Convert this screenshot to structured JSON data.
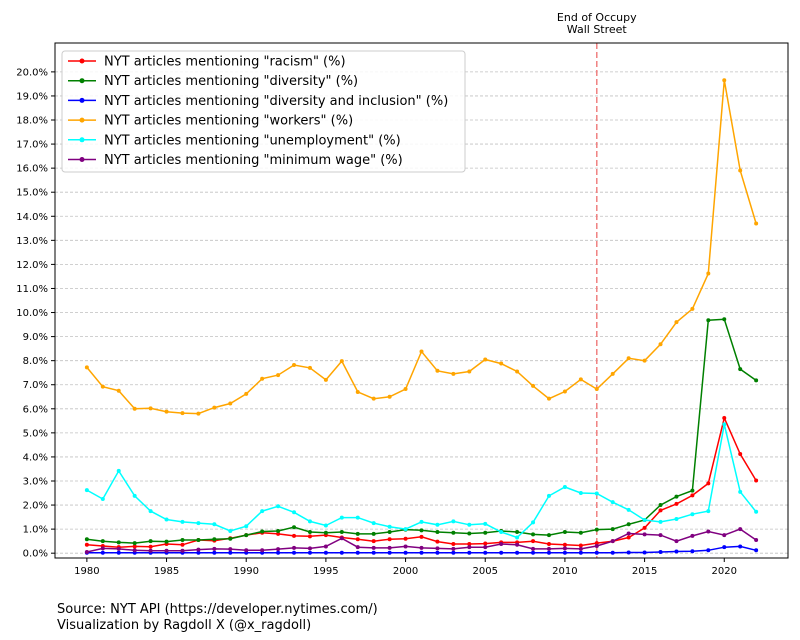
{
  "chart_data": {
    "type": "line",
    "title": "",
    "xlabel": "",
    "ylabel": "",
    "xlim": [
      1978,
      2024
    ],
    "ylim": [
      -0.2,
      21.2
    ],
    "x_ticks": [
      1980,
      1985,
      1990,
      1995,
      2000,
      2005,
      2010,
      2015,
      2020
    ],
    "y_ticks": [
      0,
      1,
      2,
      3,
      4,
      5,
      6,
      7,
      8,
      9,
      10,
      11,
      12,
      13,
      14,
      15,
      16,
      17,
      18,
      19,
      20
    ],
    "y_tick_suffix": "%",
    "grid": "horizontal dashed",
    "legend_position": "top-left",
    "x": [
      1980,
      1981,
      1982,
      1983,
      1984,
      1985,
      1986,
      1987,
      1988,
      1989,
      1990,
      1991,
      1992,
      1993,
      1994,
      1995,
      1996,
      1997,
      1998,
      1999,
      2000,
      2001,
      2002,
      2003,
      2004,
      2005,
      2006,
      2007,
      2008,
      2009,
      2010,
      2011,
      2012,
      2013,
      2014,
      2015,
      2016,
      2017,
      2018,
      2019,
      2020,
      2021,
      2022
    ],
    "series": [
      {
        "name": "NYT articles mentioning \"racism\" (%)",
        "color": "#ff0000",
        "values": [
          0.35,
          0.3,
          0.25,
          0.28,
          0.27,
          0.38,
          0.35,
          0.55,
          0.52,
          0.62,
          0.75,
          0.85,
          0.8,
          0.72,
          0.7,
          0.75,
          0.65,
          0.58,
          0.5,
          0.58,
          0.6,
          0.68,
          0.48,
          0.38,
          0.38,
          0.4,
          0.45,
          0.45,
          0.5,
          0.38,
          0.35,
          0.32,
          0.42,
          0.5,
          0.65,
          1.05,
          1.78,
          2.05,
          2.4,
          2.9,
          5.62,
          4.12,
          3.02
        ]
      },
      {
        "name": "NYT articles mentioning \"diversity\" (%)",
        "color": "#008000",
        "values": [
          0.58,
          0.5,
          0.45,
          0.42,
          0.5,
          0.48,
          0.55,
          0.55,
          0.58,
          0.6,
          0.75,
          0.9,
          0.92,
          1.08,
          0.88,
          0.85,
          0.88,
          0.8,
          0.8,
          0.88,
          0.98,
          0.95,
          0.88,
          0.85,
          0.82,
          0.85,
          0.92,
          0.88,
          0.78,
          0.75,
          0.88,
          0.85,
          0.98,
          1.0,
          1.2,
          1.38,
          2.0,
          2.35,
          2.6,
          9.68,
          9.72,
          7.65,
          7.18
        ]
      },
      {
        "name": "NYT articles mentioning \"diversity and inclusion\" (%)",
        "color": "#0000ff",
        "values": [
          0.02,
          0.02,
          0.02,
          0.02,
          0.02,
          0.02,
          0.02,
          0.02,
          0.02,
          0.02,
          0.02,
          0.02,
          0.02,
          0.02,
          0.02,
          0.02,
          0.02,
          0.02,
          0.02,
          0.02,
          0.02,
          0.02,
          0.02,
          0.02,
          0.02,
          0.02,
          0.02,
          0.02,
          0.02,
          0.02,
          0.02,
          0.02,
          0.02,
          0.02,
          0.03,
          0.03,
          0.05,
          0.07,
          0.08,
          0.12,
          0.25,
          0.28,
          0.12
        ]
      },
      {
        "name": "NYT articles mentioning \"workers\" (%)",
        "color": "#ffa500",
        "values": [
          7.72,
          6.92,
          6.75,
          6.0,
          6.02,
          5.88,
          5.82,
          5.8,
          6.05,
          6.22,
          6.62,
          7.25,
          7.4,
          7.82,
          7.7,
          7.2,
          7.98,
          6.7,
          6.42,
          6.5,
          6.82,
          8.38,
          7.58,
          7.45,
          7.55,
          8.05,
          7.88,
          7.55,
          6.95,
          6.42,
          6.72,
          7.22,
          6.82,
          7.45,
          8.1,
          8.0,
          8.68,
          9.6,
          10.15,
          11.62,
          19.65,
          15.9,
          13.7
        ]
      },
      {
        "name": "NYT articles mentioning \"unemployment\" (%)",
        "color": "#00ffff",
        "values": [
          2.62,
          2.25,
          3.42,
          2.38,
          1.75,
          1.4,
          1.3,
          1.25,
          1.2,
          0.92,
          1.12,
          1.75,
          1.95,
          1.7,
          1.32,
          1.15,
          1.48,
          1.48,
          1.25,
          1.1,
          1.0,
          1.3,
          1.18,
          1.32,
          1.18,
          1.22,
          0.88,
          0.65,
          1.28,
          2.38,
          2.75,
          2.5,
          2.48,
          2.12,
          1.8,
          1.38,
          1.3,
          1.42,
          1.62,
          1.75,
          5.35,
          2.55,
          1.72
        ]
      },
      {
        "name": "NYT articles mentioning \"minimum wage\" (%)",
        "color": "#800080",
        "values": [
          0.05,
          0.2,
          0.18,
          0.12,
          0.1,
          0.1,
          0.1,
          0.15,
          0.18,
          0.17,
          0.12,
          0.12,
          0.17,
          0.22,
          0.2,
          0.28,
          0.62,
          0.25,
          0.22,
          0.22,
          0.28,
          0.22,
          0.2,
          0.18,
          0.25,
          0.25,
          0.38,
          0.35,
          0.18,
          0.18,
          0.2,
          0.18,
          0.3,
          0.5,
          0.82,
          0.78,
          0.75,
          0.5,
          0.72,
          0.9,
          0.75,
          1.0,
          0.55
        ]
      }
    ],
    "annotations": [
      {
        "x": 2012,
        "text_lines": [
          "End of Occupy",
          "Wall Street"
        ],
        "line_color": "#f08080",
        "line_style": "dashed"
      }
    ]
  },
  "footer": {
    "source": "Source: NYT API (https://developer.nytimes.com/)",
    "credit": "Visualization by Ragdoll X (@x_ragdoll)"
  }
}
